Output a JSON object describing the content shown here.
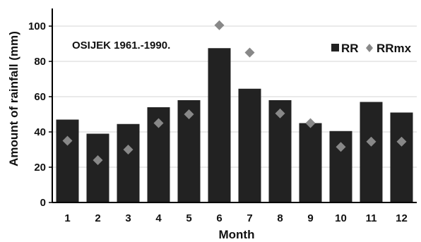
{
  "chart_data": {
    "type": "bar",
    "title": "OSIJEK 1961.-1990.",
    "xlabel": "Month",
    "ylabel": "Amount of rainfall (mm)",
    "ylim": [
      0,
      110
    ],
    "yticks": [
      0,
      20,
      40,
      60,
      80,
      100
    ],
    "categories": [
      "1",
      "2",
      "3",
      "4",
      "5",
      "6",
      "7",
      "8",
      "9",
      "10",
      "11",
      "12"
    ],
    "grid": true,
    "legend_position": "top-right",
    "series": [
      {
        "name": "RR",
        "type": "bar",
        "color": "#222222",
        "values": [
          47,
          39,
          44.5,
          54,
          58,
          87.5,
          64.5,
          58,
          45,
          40.5,
          57,
          51
        ]
      },
      {
        "name": "RRmx",
        "type": "scatter",
        "marker": "diamond",
        "color": "#888888",
        "values": [
          35,
          24,
          30,
          45,
          50,
          100.5,
          85,
          50.5,
          45,
          31.5,
          34.5,
          34.5
        ]
      }
    ]
  }
}
